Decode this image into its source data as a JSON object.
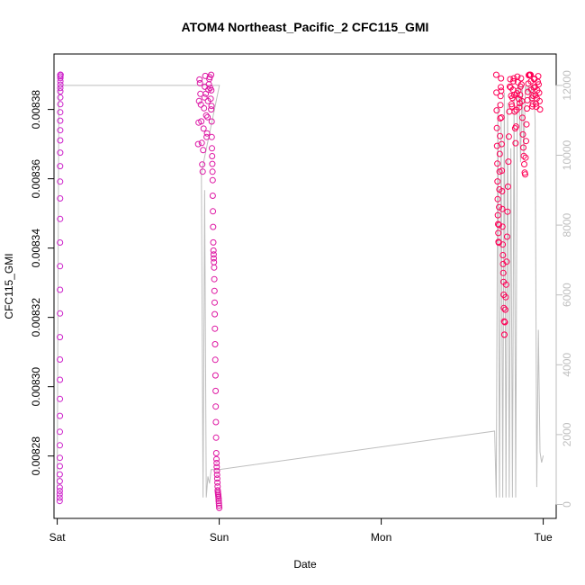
{
  "chart_data": {
    "type": "scatter",
    "title": "ATOM4 Northeast_Pacific_2 CFC115_GMI",
    "xlabel": "Date",
    "ylabel": "CFC115_GMI",
    "x_ticks": [
      "Sat",
      "Sun",
      "Mon",
      "Tue"
    ],
    "x_tick_days": [
      0,
      1,
      2,
      3
    ],
    "xlim_days": [
      -0.02,
      3.08
    ],
    "ylim": [
      0.008262,
      0.008396
    ],
    "y_ticks": [
      0.00828,
      0.0083,
      0.00832,
      0.00834,
      0.00836,
      0.00838
    ],
    "y_tick_labels": [
      "0.00828",
      "0.00830",
      "0.00832",
      "0.00834",
      "0.00836",
      "0.00838"
    ],
    "y2lim": [
      -400,
      12900
    ],
    "y2_ticks": [
      0,
      2000,
      4000,
      6000,
      8000,
      10000,
      12000
    ],
    "y2_tick_labels": [
      "0",
      "2000",
      "4000",
      "6000",
      "8000",
      "10000",
      "12000"
    ],
    "grid": false,
    "colors": {
      "low": "#cc22cc",
      "high": "#ff0055",
      "altitude": "#bebebe",
      "axis": "#000000",
      "right_axis": "#bebebe"
    },
    "series": [
      {
        "role": "CFC115_GMI",
        "segments": [
          {
            "x0": 0.015,
            "x1": 0.02,
            "n": 40,
            "y": [
              0.008267,
              0.008269,
              0.008271,
              0.008275,
              0.00828,
              0.008288,
              0.008298,
              0.00831,
              0.008324,
              0.008338,
              0.008352,
              0.008362,
              0.00837,
              0.008376,
              0.008381,
              0.008385,
              0.008387,
              0.008389,
              0.00839,
              0.00839
            ]
          },
          {
            "x0": 0.87,
            "x1": 0.95,
            "n": 30,
            "y": [
              0.00837,
              0.00839,
              0.00838,
              0.00836,
              0.00838,
              0.00839,
              0.00837,
              0.008385,
              0.00839,
              0.00838
            ]
          },
          {
            "x0": 0.95,
            "x1": 1.0,
            "n": 50,
            "y": [
              0.00839,
              0.00837,
              0.00836,
              0.00834,
              0.008335,
              0.00832,
              0.0083,
              0.00828,
              0.008275,
              0.00827,
              0.008268,
              0.008265
            ]
          },
          {
            "x0": 2.71,
            "x1": 2.76,
            "n": 40,
            "y": [
              0.00839,
              0.00837,
              0.00835,
              0.00834,
              0.00836,
              0.00838,
              0.00839,
              0.00836,
              0.00834,
              0.00833,
              0.008315
            ]
          },
          {
            "x0": 2.76,
            "x1": 2.98,
            "n": 80,
            "y": [
              0.008315,
              0.00833,
              0.00836,
              0.00839,
              0.00838,
              0.00839,
              0.00837,
              0.00839,
              0.00838,
              0.00839,
              0.00837,
              0.00836,
              0.00838,
              0.00839,
              0.00839,
              0.00838,
              0.00839,
              0.00838,
              0.00839,
              0.00838
            ]
          }
        ]
      },
      {
        "role": "altitude",
        "x": [
          0.0,
          0.01,
          0.015,
          0.02,
          0.03,
          1.0,
          1.001,
          0.89,
          0.9,
          0.91,
          0.92,
          0.93,
          0.94,
          0.95,
          0.96,
          0.97,
          0.98,
          0.99,
          1.0,
          2.7,
          2.71,
          2.72,
          2.73,
          2.74,
          2.75,
          2.76,
          2.77,
          2.78,
          2.79,
          2.8,
          2.81,
          2.82,
          2.83,
          2.84,
          2.85,
          2.86,
          2.87,
          2.88,
          2.89,
          2.9,
          2.91,
          2.92,
          2.93,
          2.94,
          2.95,
          2.96,
          2.97,
          2.98,
          2.99,
          3.0
        ],
        "y": [
          500,
          12000,
          12000,
          12000,
          12000,
          12000,
          12000,
          9500,
          200,
          9000,
          200,
          800,
          600,
          1000,
          1000,
          1000,
          1000,
          1000,
          1000,
          2100,
          200,
          11500,
          200,
          11000,
          200,
          11800,
          200,
          11500,
          200,
          10200,
          200,
          11800,
          200,
          11900,
          12000,
          9800,
          12000,
          10000,
          12000,
          11800,
          12000,
          11500,
          12000,
          12000,
          11000,
          500,
          5000,
          1500,
          1200,
          1400
        ]
      }
    ]
  }
}
